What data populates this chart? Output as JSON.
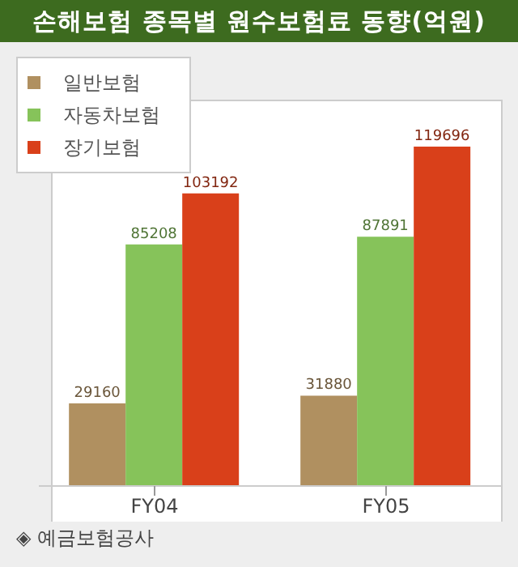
{
  "chart_data": {
    "type": "bar",
    "title": "손해보험 종목별 원수보험료 동향(억원)",
    "categories": [
      "FY04",
      "FY05"
    ],
    "series": [
      {
        "name": "일반보험",
        "color": "#b09060",
        "values": [
          29160,
          31880
        ]
      },
      {
        "name": "자동차보험",
        "color": "#86c35a",
        "values": [
          85208,
          87891
        ]
      },
      {
        "name": "장기보험",
        "color": "#d9401a",
        "values": [
          103192,
          119696
        ]
      }
    ],
    "data_labels": true,
    "legend": "top left",
    "grid": false,
    "tick_labels": "x",
    "annotations": [
      "◈ 예금보험공사"
    ]
  }
}
